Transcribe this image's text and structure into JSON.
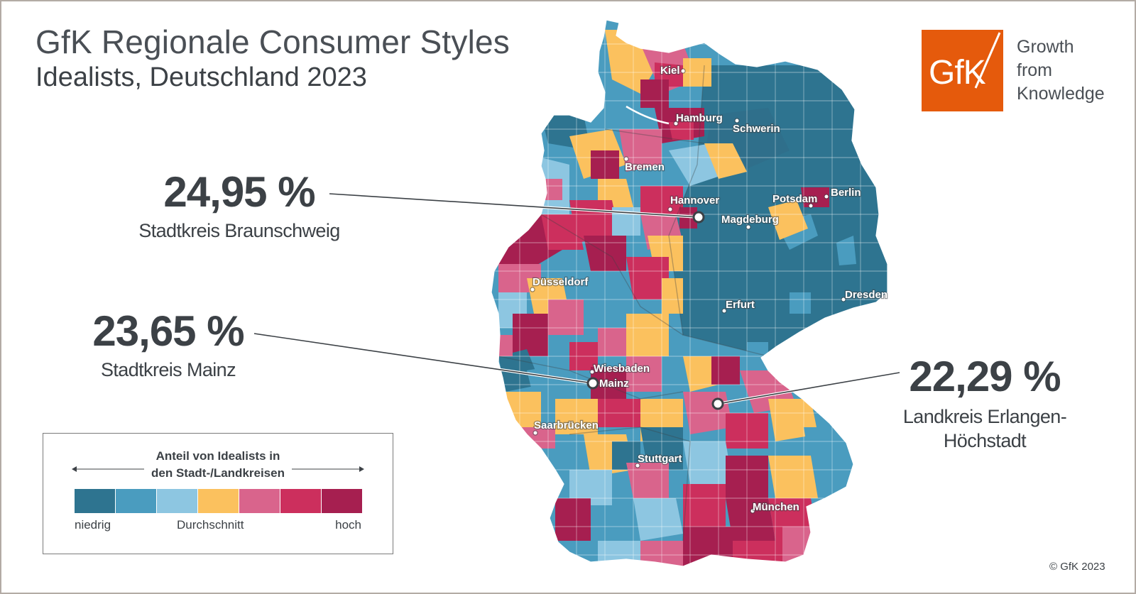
{
  "header": {
    "title": "GfK Regionale Consumer Styles",
    "subtitle": "Idealists, Deutschland 2023"
  },
  "brand": {
    "logo_text": "GfK",
    "tagline": [
      "Growth",
      "from",
      "Knowledge"
    ],
    "color": "#e55a0c"
  },
  "callouts": [
    {
      "value": "24,95 %",
      "label": "Stadtkreis Braunschweig"
    },
    {
      "value": "23,65 %",
      "label": "Stadtkreis Mainz"
    },
    {
      "value": "22,29 %",
      "label": "Landkreis Erlangen-Höchstadt"
    }
  ],
  "cities": [
    "Kiel",
    "Hamburg",
    "Schwerin",
    "Bremen",
    "Hannover",
    "Potsdam",
    "Berlin",
    "Magdeburg",
    "Düsseldorf",
    "Erfurt",
    "Dresden",
    "Wiesbaden",
    "Mainz",
    "Saarbrücken",
    "Stuttgart",
    "München"
  ],
  "legend": {
    "title_line1": "Anteil von Idealists in",
    "title_line2": "den Stadt-/Landkreisen",
    "low": "niedrig",
    "mid": "Durchschnitt",
    "high": "hoch",
    "colors": [
      "#2e7490",
      "#4a9cbf",
      "#8dc6e1",
      "#fbc15e",
      "#d9648c",
      "#cc2f5d",
      "#a61f50"
    ]
  },
  "copyright": "© GfK 2023"
}
